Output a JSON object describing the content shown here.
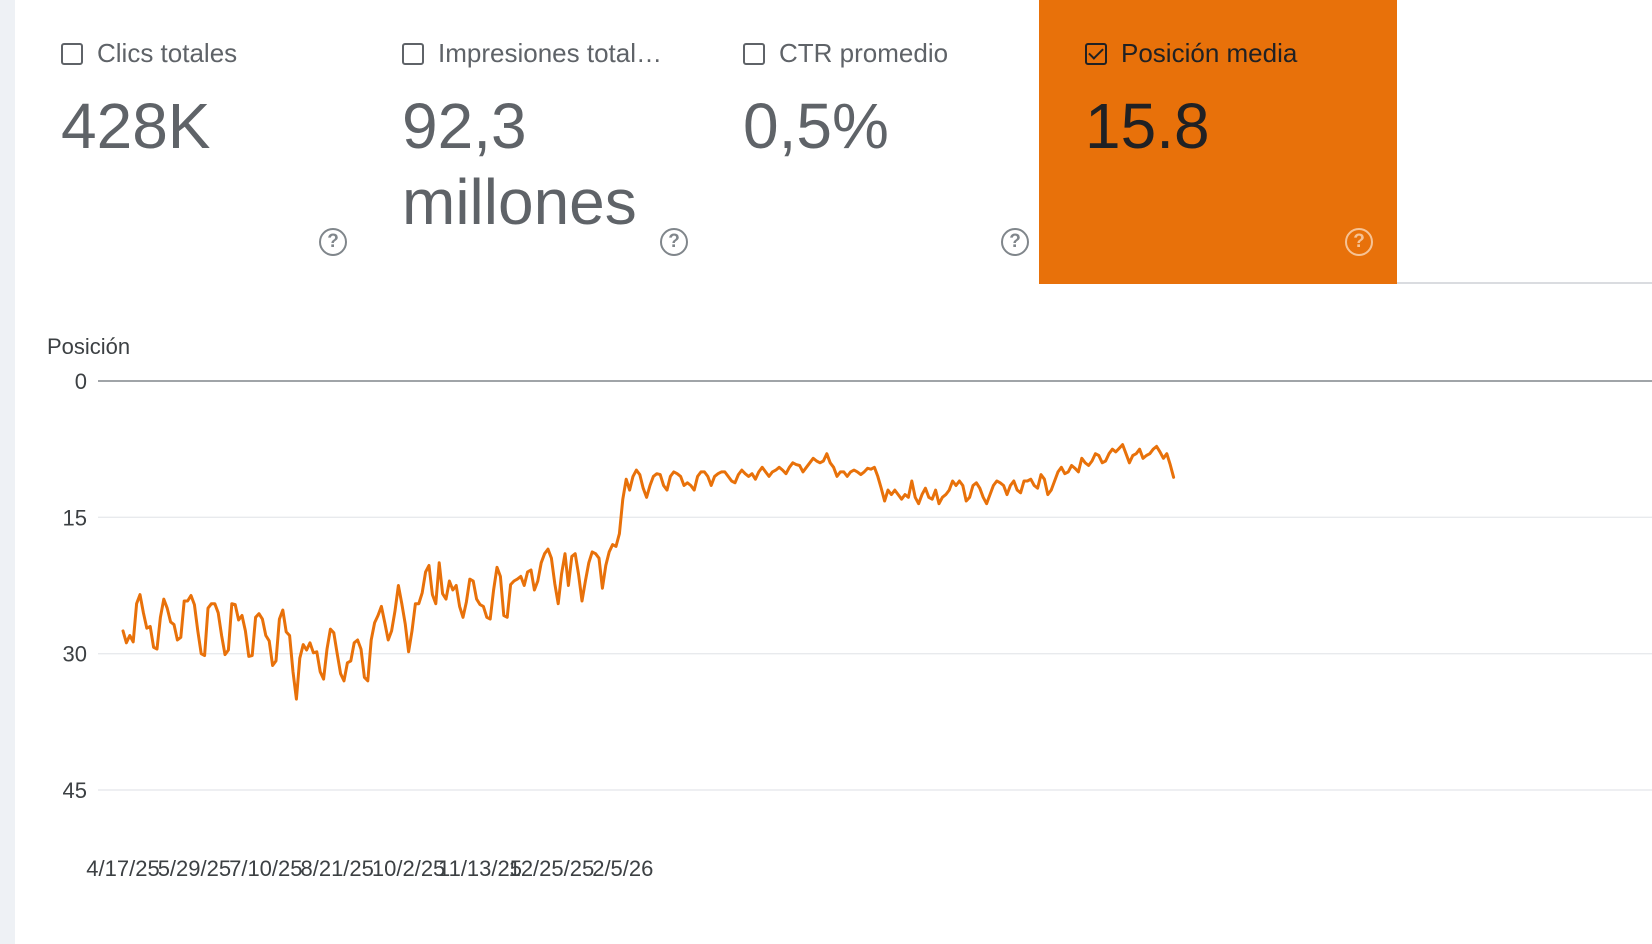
{
  "metrics": [
    {
      "label": "Clics totales",
      "value": "428K",
      "checked": false
    },
    {
      "label": "Impresiones total…",
      "value": "92,3 millones",
      "checked": false
    },
    {
      "label": "CTR promedio",
      "value": "0,5%",
      "checked": false
    },
    {
      "label": "Posición media",
      "value": "15.8",
      "checked": true
    }
  ],
  "help_icon": "question-circle-icon",
  "accent_color": "#e8710a",
  "chart_data": {
    "type": "line",
    "title": "",
    "ylabel": "Posición",
    "xlabel": "",
    "y_inverted": true,
    "ylim": [
      0,
      45
    ],
    "yticks": [
      0,
      15,
      30,
      45
    ],
    "x_tick_labels": [
      "4/17/25",
      "5/29/25",
      "7/10/25",
      "8/21/25",
      "10/2/25",
      "11/13/25",
      "12/25/25",
      "2/5/26"
    ],
    "x_start": "4/17/25",
    "x_interval_days": 2,
    "grid": true,
    "color": "#e8710a",
    "series": [
      {
        "values": [
          27.5,
          28.8,
          28.0,
          28.7,
          24.5,
          23.5,
          25.5,
          27.2,
          27.0,
          29.3,
          29.5,
          26.0,
          24.0,
          25.0,
          26.5,
          26.8,
          28.5,
          28.2,
          24.2,
          24.2,
          23.6,
          24.6,
          27.5,
          30.0,
          30.2,
          25.0,
          24.5,
          24.5,
          25.5,
          28.0,
          30.1,
          29.6,
          24.5,
          24.6,
          26.3,
          25.8,
          27.5,
          30.3,
          30.2,
          26.0,
          25.6,
          26.2,
          28.0,
          28.6,
          31.3,
          30.8,
          26.2,
          25.2,
          27.6,
          28.0,
          32.0,
          35.0,
          30.5,
          29.0,
          29.6,
          28.8,
          29.9,
          29.8,
          32.0,
          32.8,
          29.5,
          27.3,
          27.7,
          30.0,
          32.2,
          33.0,
          31.0,
          30.8,
          28.8,
          28.5,
          29.5,
          32.6,
          33.0,
          28.5,
          26.6,
          25.8,
          24.8,
          26.6,
          28.5,
          27.5,
          25.3,
          22.5,
          24.5,
          26.7,
          29.8,
          27.5,
          24.5,
          24.5,
          23.3,
          21.0,
          20.3,
          23.5,
          24.5,
          20.0,
          23.4,
          24.0,
          22.0,
          23.0,
          22.5,
          24.8,
          26.0,
          24.3,
          21.8,
          22.0,
          24.0,
          24.6,
          24.8,
          26.0,
          26.2,
          23.0,
          20.5,
          21.5,
          25.8,
          26.0,
          22.4,
          22.0,
          21.8,
          21.5,
          22.5,
          21.0,
          20.8,
          23.0,
          22.0,
          20.0,
          19.0,
          18.5,
          19.5,
          22.3,
          24.5,
          21.2,
          19.0,
          22.5,
          19.3,
          19.0,
          21.3,
          24.2,
          22.0,
          20.0,
          18.8,
          19.0,
          19.5,
          22.8,
          20.3,
          18.8,
          18.0,
          18.2,
          16.8,
          13.0,
          10.8,
          12.0,
          10.5,
          9.8,
          10.3,
          11.8,
          12.8,
          11.5,
          10.5,
          10.2,
          10.3,
          11.5,
          12.0,
          10.5,
          10.0,
          10.2,
          10.5,
          11.5,
          11.2,
          11.5,
          12.0,
          10.5,
          10.0,
          10.0,
          10.5,
          11.5,
          10.5,
          10.2,
          10.0,
          10.0,
          10.5,
          11.0,
          11.2,
          10.3,
          9.8,
          10.2,
          10.5,
          10.2,
          10.8,
          10.0,
          9.5,
          10.0,
          10.5,
          10.0,
          9.8,
          9.5,
          9.8,
          10.2,
          9.5,
          9.0,
          9.2,
          9.3,
          10.0,
          9.5,
          9.0,
          8.5,
          8.8,
          9.0,
          8.8,
          8.0,
          9.0,
          9.5,
          10.5,
          10.0,
          10.0,
          10.5,
          10.0,
          9.8,
          10.0,
          10.3,
          10.0,
          9.6,
          9.7,
          9.5,
          10.5,
          11.8,
          13.2,
          12.0,
          12.5,
          12.0,
          12.5,
          13.0,
          12.5,
          12.8,
          11.0,
          12.8,
          13.5,
          12.5,
          11.8,
          12.8,
          13.0,
          12.0,
          13.5,
          12.8,
          12.5,
          12.0,
          11.0,
          11.5,
          11.0,
          11.5,
          13.2,
          12.8,
          11.5,
          11.2,
          11.8,
          12.8,
          13.5,
          12.5,
          11.5,
          11.0,
          11.2,
          11.5,
          12.5,
          11.5,
          11.0,
          12.0,
          12.3,
          11.0,
          11.0,
          10.8,
          11.5,
          11.8,
          10.3,
          10.8,
          12.5,
          12.0,
          11.0,
          10.0,
          9.5,
          10.2,
          10.0,
          9.3,
          9.6,
          10.0,
          8.5,
          9.0,
          9.3,
          8.8,
          8.0,
          8.2,
          9.0,
          8.8,
          8.0,
          7.5,
          7.8,
          7.4,
          7.0,
          8.0,
          9.0,
          8.2,
          8.0,
          7.5,
          8.5,
          8.2,
          8.0,
          7.5,
          7.2,
          7.8,
          8.5,
          8.0,
          9.2,
          10.6
        ]
      }
    ]
  }
}
